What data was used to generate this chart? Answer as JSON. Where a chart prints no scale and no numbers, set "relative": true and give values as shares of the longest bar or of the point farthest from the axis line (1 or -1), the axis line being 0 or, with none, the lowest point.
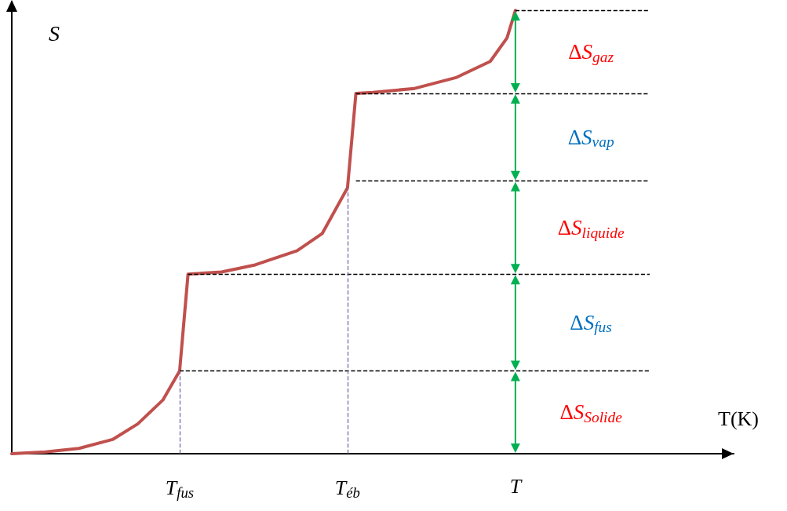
{
  "chart_data": {
    "type": "line",
    "relative": true,
    "xlabel": "T(K)",
    "ylabel": "S",
    "categories": [
      null,
      null,
      null,
      null,
      null,
      null,
      null,
      null,
      null,
      null,
      null,
      null,
      null,
      null,
      null,
      null,
      null,
      null,
      null,
      null,
      "T$_{fus}$",
      null,
      null,
      null,
      null,
      null,
      null,
      null,
      null,
      null,
      null,
      null,
      null,
      null,
      null,
      null,
      null,
      null,
      null,
      null,
      "T$_{éb}$",
      null,
      null,
      null,
      null,
      null,
      null,
      null,
      null,
      null,
      null,
      null,
      null,
      null,
      null,
      null,
      null,
      null,
      null,
      null,
      "T",
      null,
      null,
      null,
      null,
      null,
      null,
      null,
      null,
      null,
      null,
      null,
      null,
      null,
      null,
      null,
      null,
      null,
      null,
      null,
      null,
      null,
      null,
      null,
      null,
      null,
      null
    ],
    "series": [
      {
        "color": "#c0504d",
        "values": [
          0,
          null,
          null,
          null,
          0.004,
          null,
          null,
          null,
          0.012,
          null,
          null,
          null,
          0.032,
          null,
          null,
          0.067,
          null,
          null,
          0.121,
          null,
          0.187,
          0.405,
          null,
          null,
          null,
          0.41,
          null,
          null,
          null,
          0.426,
          null,
          null,
          null,
          null,
          0.458,
          null,
          null,
          0.497,
          null,
          null,
          0.6,
          0.813,
          null,
          0.815,
          null,
          null,
          null,
          null,
          0.824,
          null,
          null,
          null,
          null,
          0.849,
          null,
          null,
          null,
          0.885,
          null,
          0.938,
          1,
          null,
          null,
          null,
          null,
          null,
          null,
          null,
          null,
          null,
          null,
          null,
          null,
          null,
          null,
          null,
          null,
          null,
          null,
          null,
          null,
          null,
          null,
          null,
          null,
          null,
          null
        ]
      }
    ],
    "ylim": [
      0,
      1.02
    ],
    "ref_lines": [
      {
        "axis": "y",
        "value": 0.187,
        "color": "#000000",
        "line_style": "dashed"
      },
      {
        "axis": "y",
        "value": 0.405,
        "color": "#000000",
        "line_style": "dashed"
      },
      {
        "axis": "y",
        "value": 0.615,
        "color": "#000000",
        "line_style": "dashed"
      },
      {
        "axis": "y",
        "value": 0.813,
        "color": "#000000",
        "line_style": "dashed"
      },
      {
        "axis": "y",
        "value": 1,
        "color": "#000000",
        "line_style": "dashed"
      },
      {
        "axis": "x",
        "value": "T$_{fus}$",
        "color": "#7f6aa8",
        "line_style": "dashed"
      },
      {
        "axis": "x",
        "value": "T$_{éb}$",
        "color": "#7f6aa8",
        "line_style": "dashed"
      }
    ],
    "annotations": [
      "ΔS$_{gaz}$",
      "ΔS$_{vap}$",
      "ΔS$_{liquide}$",
      "ΔS$_{fus}$",
      "ΔS$_{Solide}$"
    ],
    "grid": false,
    "marker": "none",
    "line_style": "solid"
  }
}
